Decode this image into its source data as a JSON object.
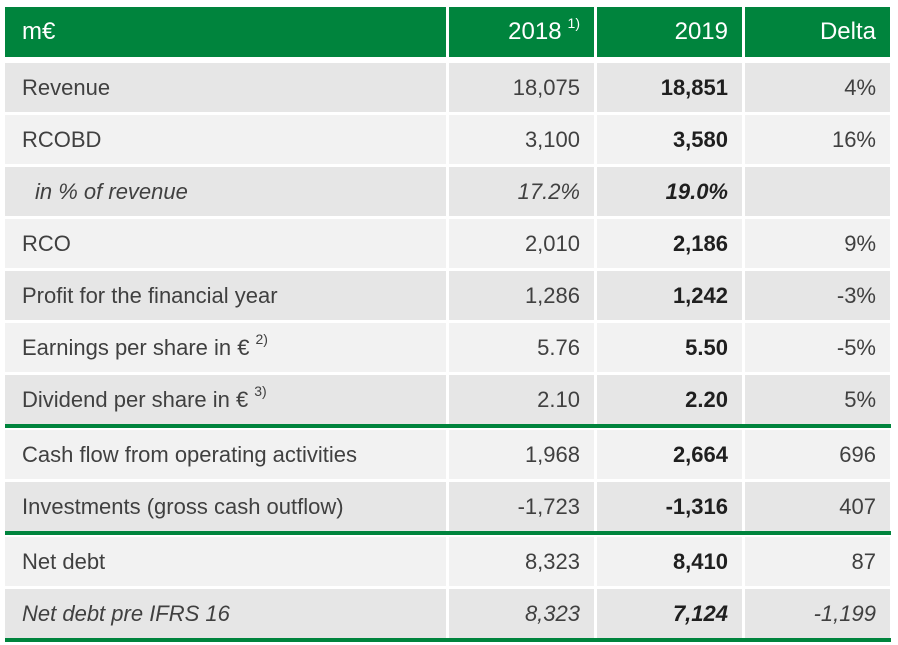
{
  "colors": {
    "header_green": "#00843d",
    "row_light": "#f2f2f2",
    "row_dark": "#e6e6e6",
    "text": "#404040"
  },
  "header": {
    "label": "m€",
    "col1": "2018",
    "col1_note": "1)",
    "col2": "2019",
    "col3": "Delta"
  },
  "rows": [
    {
      "label": "Revenue",
      "note": "",
      "v2018": "18,075",
      "v2019": "18,851",
      "delta": "4%"
    },
    {
      "label": "RCOBD",
      "note": "",
      "v2018": "3,100",
      "v2019": "3,580",
      "delta": "16%"
    },
    {
      "label": "in % of revenue",
      "note": "",
      "v2018": "17.2%",
      "v2019": "19.0%",
      "delta": ""
    },
    {
      "label": "RCO",
      "note": "",
      "v2018": "2,010",
      "v2019": "2,186",
      "delta": "9%"
    },
    {
      "label": "Profit for the financial year",
      "note": "",
      "v2018": "1,286",
      "v2019": "1,242",
      "delta": "-3%"
    },
    {
      "label": "Earnings per share in €",
      "note": "2)",
      "v2018": "5.76",
      "v2019": "5.50",
      "delta": "-5%"
    },
    {
      "label": "Dividend per share in €",
      "note": "3)",
      "v2018": "2.10",
      "v2019": "2.20",
      "delta": "5%"
    },
    {
      "label": "Cash flow from operating activities",
      "note": "",
      "v2018": "1,968",
      "v2019": "2,664",
      "delta": "696"
    },
    {
      "label": "Investments (gross cash outflow)",
      "note": "",
      "v2018": "-1,723",
      "v2019": "-1,316",
      "delta": "407"
    },
    {
      "label": "Net debt",
      "note": "",
      "v2018": "8,323",
      "v2019": "8,410",
      "delta": "87"
    },
    {
      "label": "Net debt pre IFRS 16",
      "note": "",
      "v2018": "8,323",
      "v2019": "7,124",
      "delta": "-1,199"
    }
  ]
}
